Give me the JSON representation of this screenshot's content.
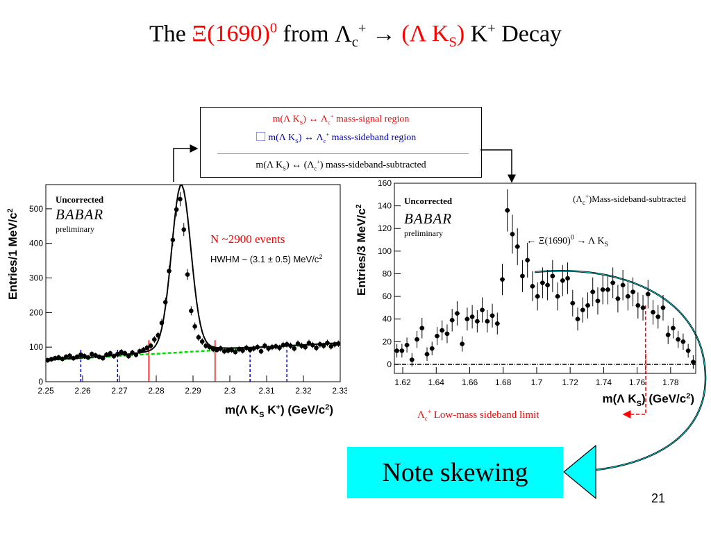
{
  "slide": {
    "title": {
      "prefix": "The ",
      "xi": "Ξ(1690)",
      "xi_sup": "0",
      "from": " from Λ",
      "lc_sub": "c",
      "lc_sup": "+",
      "arrow": "  → ",
      "lk_open": "(Λ K",
      "lk_sub": "S",
      "lk_close": ")",
      "k": " K",
      "k_sup": "+",
      "decay": "  Decay"
    },
    "legend": {
      "signal": {
        "a": "m(Λ K",
        "sub": "S",
        "b": ") ↔ Λ",
        "c_sub": "c",
        "c_sup": "+",
        "d": " mass-signal region"
      },
      "sideband": {
        "bullet": "⃞",
        "a": " m(Λ K",
        "sub": "S",
        "b": ") ↔ Λ",
        "c_sub": "c",
        "c_sup": "+",
        "d": " mass-sideband region"
      },
      "subtracted": {
        "a": "m(Λ K",
        "sub": "S",
        "b": ") ↔ (Λ",
        "c_sub": "c",
        "c_sup": "+",
        "d": ") mass-sideband-subtracted"
      }
    },
    "note": "Note skewing",
    "page_number": "21",
    "sideband_limit": {
      "a": "Λ",
      "sub": "c",
      "sup": "+",
      "b": " Low-mass sideband limit"
    }
  },
  "colors": {
    "signal": "#ff0000",
    "sideband": "#0000cc",
    "background_fit": "#00dd00",
    "note_box": "#00ffff"
  },
  "chart_data": [
    {
      "type": "scatter",
      "uncorrected_label": "Uncorrected",
      "logo": "BABAR",
      "logo_sub": "preliminary",
      "annotation_events": "N ~2900 events",
      "annotation_hwhm": "HWHM ~ (3.1 ± 0.5) MeV/c",
      "annotation_hwhm_sup": "2",
      "ylabel": "Entries/1 MeV/c",
      "ylabel_sup": "2",
      "xlabel": "m(Λ K",
      "xlabel_sub": "S",
      "xlabel_mid": " K",
      "xlabel_sup": "+",
      "xlabel_end": ") (GeV/c",
      "xlabel_sup2": "2",
      "xlabel_close": ")",
      "xlim": [
        2.25,
        2.33
      ],
      "ylim": [
        0,
        570
      ],
      "xticks": [
        2.25,
        2.26,
        2.27,
        2.28,
        2.29,
        2.3,
        2.31,
        2.32,
        2.33
      ],
      "xtick_labels": [
        "2.25",
        "2.26",
        "2.27",
        "2.28",
        "2.29",
        "2.3",
        "2.31",
        "2.32",
        "2.33"
      ],
      "yticks": [
        0,
        100,
        200,
        300,
        400,
        500
      ],
      "ytick_labels": [
        "0",
        "100",
        "200",
        "300",
        "400",
        "500"
      ],
      "signal_lines": [
        2.278,
        2.296
      ],
      "sideband_lines": [
        2.2595,
        2.2695,
        2.3055,
        2.3155
      ],
      "x": [
        2.2505,
        2.2515,
        2.2525,
        2.2535,
        2.2545,
        2.2555,
        2.2565,
        2.2575,
        2.2585,
        2.2595,
        2.2605,
        2.2615,
        2.2625,
        2.2635,
        2.2645,
        2.2655,
        2.2665,
        2.2675,
        2.2685,
        2.2695,
        2.2705,
        2.2715,
        2.2725,
        2.2735,
        2.2745,
        2.2755,
        2.2765,
        2.2775,
        2.2785,
        2.2795,
        2.2805,
        2.2815,
        2.2825,
        2.2835,
        2.2845,
        2.2855,
        2.2865,
        2.2875,
        2.2885,
        2.2895,
        2.2905,
        2.2915,
        2.2925,
        2.2935,
        2.2945,
        2.2955,
        2.2965,
        2.2975,
        2.2985,
        2.2995,
        2.3005,
        2.3015,
        2.3025,
        2.3035,
        2.3045,
        2.3055,
        2.3065,
        2.3075,
        2.3085,
        2.3095,
        2.3105,
        2.3115,
        2.3125,
        2.3135,
        2.3145,
        2.3155,
        2.3165,
        2.3175,
        2.3185,
        2.3195,
        2.3205,
        2.3215,
        2.3225,
        2.3235,
        2.3245,
        2.3255,
        2.3265,
        2.3275,
        2.3285,
        2.3295
      ],
      "y": [
        62,
        65,
        68,
        70,
        66,
        72,
        75,
        68,
        72,
        78,
        74,
        70,
        80,
        76,
        72,
        68,
        78,
        82,
        74,
        80,
        86,
        82,
        74,
        84,
        78,
        88,
        92,
        98,
        104,
        122,
        134,
        170,
        230,
        320,
        410,
        498,
        528,
        440,
        310,
        205,
        160,
        128,
        116,
        104,
        100,
        94,
        92,
        96,
        88,
        90,
        92,
        86,
        94,
        90,
        98,
        92,
        96,
        100,
        88,
        104,
        96,
        100,
        102,
        98,
        106,
        108,
        104,
        96,
        110,
        104,
        100,
        112,
        106,
        98,
        108,
        104,
        112,
        102,
        108,
        110
      ],
      "fit_total_note": "solid black curve",
      "fit_background_note": "dashed green line"
    },
    {
      "type": "scatter",
      "uncorrected_label": "Uncorrected",
      "logo": "BABAR",
      "logo_sub": "preliminary",
      "annotation_title": "(Λ",
      "annotation_title_sub": "c",
      "annotation_title_sup": "+",
      "annotation_title_end": ")Mass-sideband-subtracted",
      "annotation_xi": "←   Ξ(1690)",
      "annotation_xi_sup": "0",
      "annotation_xi_end": "  → Λ K",
      "annotation_xi_sub": "S",
      "ylabel": "Entries/3 MeV/c",
      "ylabel_sup": "2",
      "xlabel": "m(Λ K",
      "xlabel_sub": "S",
      "xlabel_end": ") (GeV/c",
      "xlabel_sup": "2",
      "xlabel_close": ")",
      "xlim": [
        1.615,
        1.795
      ],
      "ylim": [
        -8,
        160
      ],
      "xticks": [
        1.62,
        1.64,
        1.66,
        1.68,
        1.7,
        1.72,
        1.74,
        1.76,
        1.78
      ],
      "xtick_labels": [
        "1.62",
        "1.64",
        "1.66",
        "1.68",
        "1.7",
        "1.72",
        "1.74",
        "1.76",
        "1.78"
      ],
      "yticks": [
        0,
        20,
        40,
        60,
        80,
        100,
        120,
        140,
        160
      ],
      "ytick_labels": [
        "0",
        "20",
        "40",
        "60",
        "80",
        "100",
        "120",
        "140",
        "160"
      ],
      "sideband_limit_x": 1.765,
      "x": [
        1.6165,
        1.6195,
        1.6225,
        1.6255,
        1.6285,
        1.6315,
        1.6345,
        1.6375,
        1.6405,
        1.6435,
        1.6465,
        1.6495,
        1.6525,
        1.6555,
        1.6585,
        1.6615,
        1.6645,
        1.6675,
        1.6705,
        1.6735,
        1.6765,
        1.6795,
        1.6825,
        1.6855,
        1.6885,
        1.6915,
        1.6945,
        1.6975,
        1.7005,
        1.7035,
        1.7065,
        1.7095,
        1.7125,
        1.7155,
        1.7185,
        1.7215,
        1.7245,
        1.7275,
        1.7305,
        1.7335,
        1.7365,
        1.7395,
        1.7425,
        1.7455,
        1.7485,
        1.7515,
        1.7545,
        1.7575,
        1.7605,
        1.7635,
        1.7665,
        1.7695,
        1.7725,
        1.7755,
        1.7785,
        1.7815,
        1.7845,
        1.7875,
        1.7905,
        1.7935
      ],
      "y": [
        12,
        12,
        17,
        4,
        22,
        32,
        9,
        14,
        25,
        30,
        27,
        39,
        45,
        18,
        40,
        42,
        38,
        48,
        38,
        43,
        36,
        75,
        136,
        115,
        104,
        78,
        92,
        69,
        60,
        72,
        70,
        78,
        60,
        74,
        76,
        54,
        40,
        48,
        52,
        64,
        56,
        66,
        66,
        72,
        58,
        70,
        60,
        64,
        52,
        50,
        62,
        46,
        42,
        50,
        26,
        32,
        22,
        20,
        12,
        2
      ]
    }
  ]
}
